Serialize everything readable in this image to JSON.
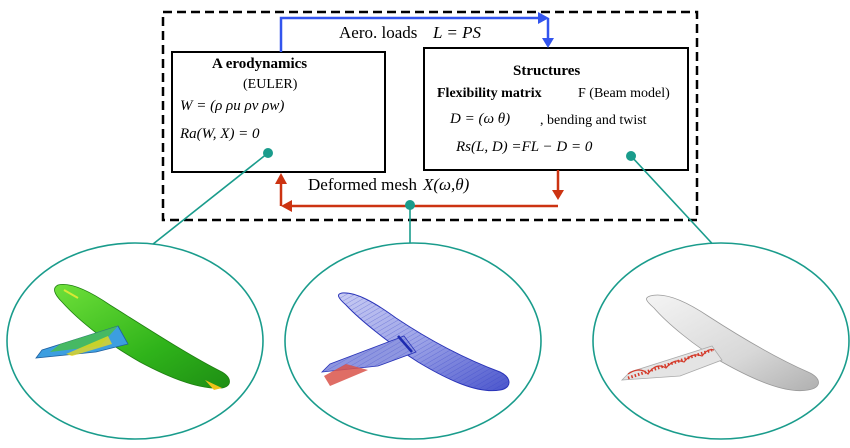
{
  "loop": {
    "top_label": "Aero. loads",
    "top_equation": "L = PS",
    "bottom_label": "Deformed mesh",
    "bottom_equation": "X(ω,θ)"
  },
  "aero_box": {
    "title": "A erodynamics",
    "subtitle": "(EULER)",
    "state_equation": "W = (ρ   ρu   ρv   ρw)",
    "residual_equation": "Ra(W, X) = 0"
  },
  "struct_box": {
    "title": "Structures",
    "line1_a": "Flexibility   matrix",
    "line1_b": "F (Beam model)",
    "line2_eq": "D = (ω   θ)",
    "line2_text": ", bending and twist",
    "residual_equation": "Rs(L, D) =FL − D  = 0"
  },
  "colors": {
    "aero_arrow": "#3355ee",
    "deform_arrow": "#cc3311",
    "connector": "#1a9c8c",
    "wing_aero": "#35c41c",
    "wing_mesh": "#5566dd",
    "wing_struct": "#d0d0d0"
  },
  "icons": {
    "aero_model": "aircraft-cfd-pressure-icon",
    "mesh_model": "aircraft-mesh-icon",
    "struct_model": "aircraft-beam-icon"
  }
}
